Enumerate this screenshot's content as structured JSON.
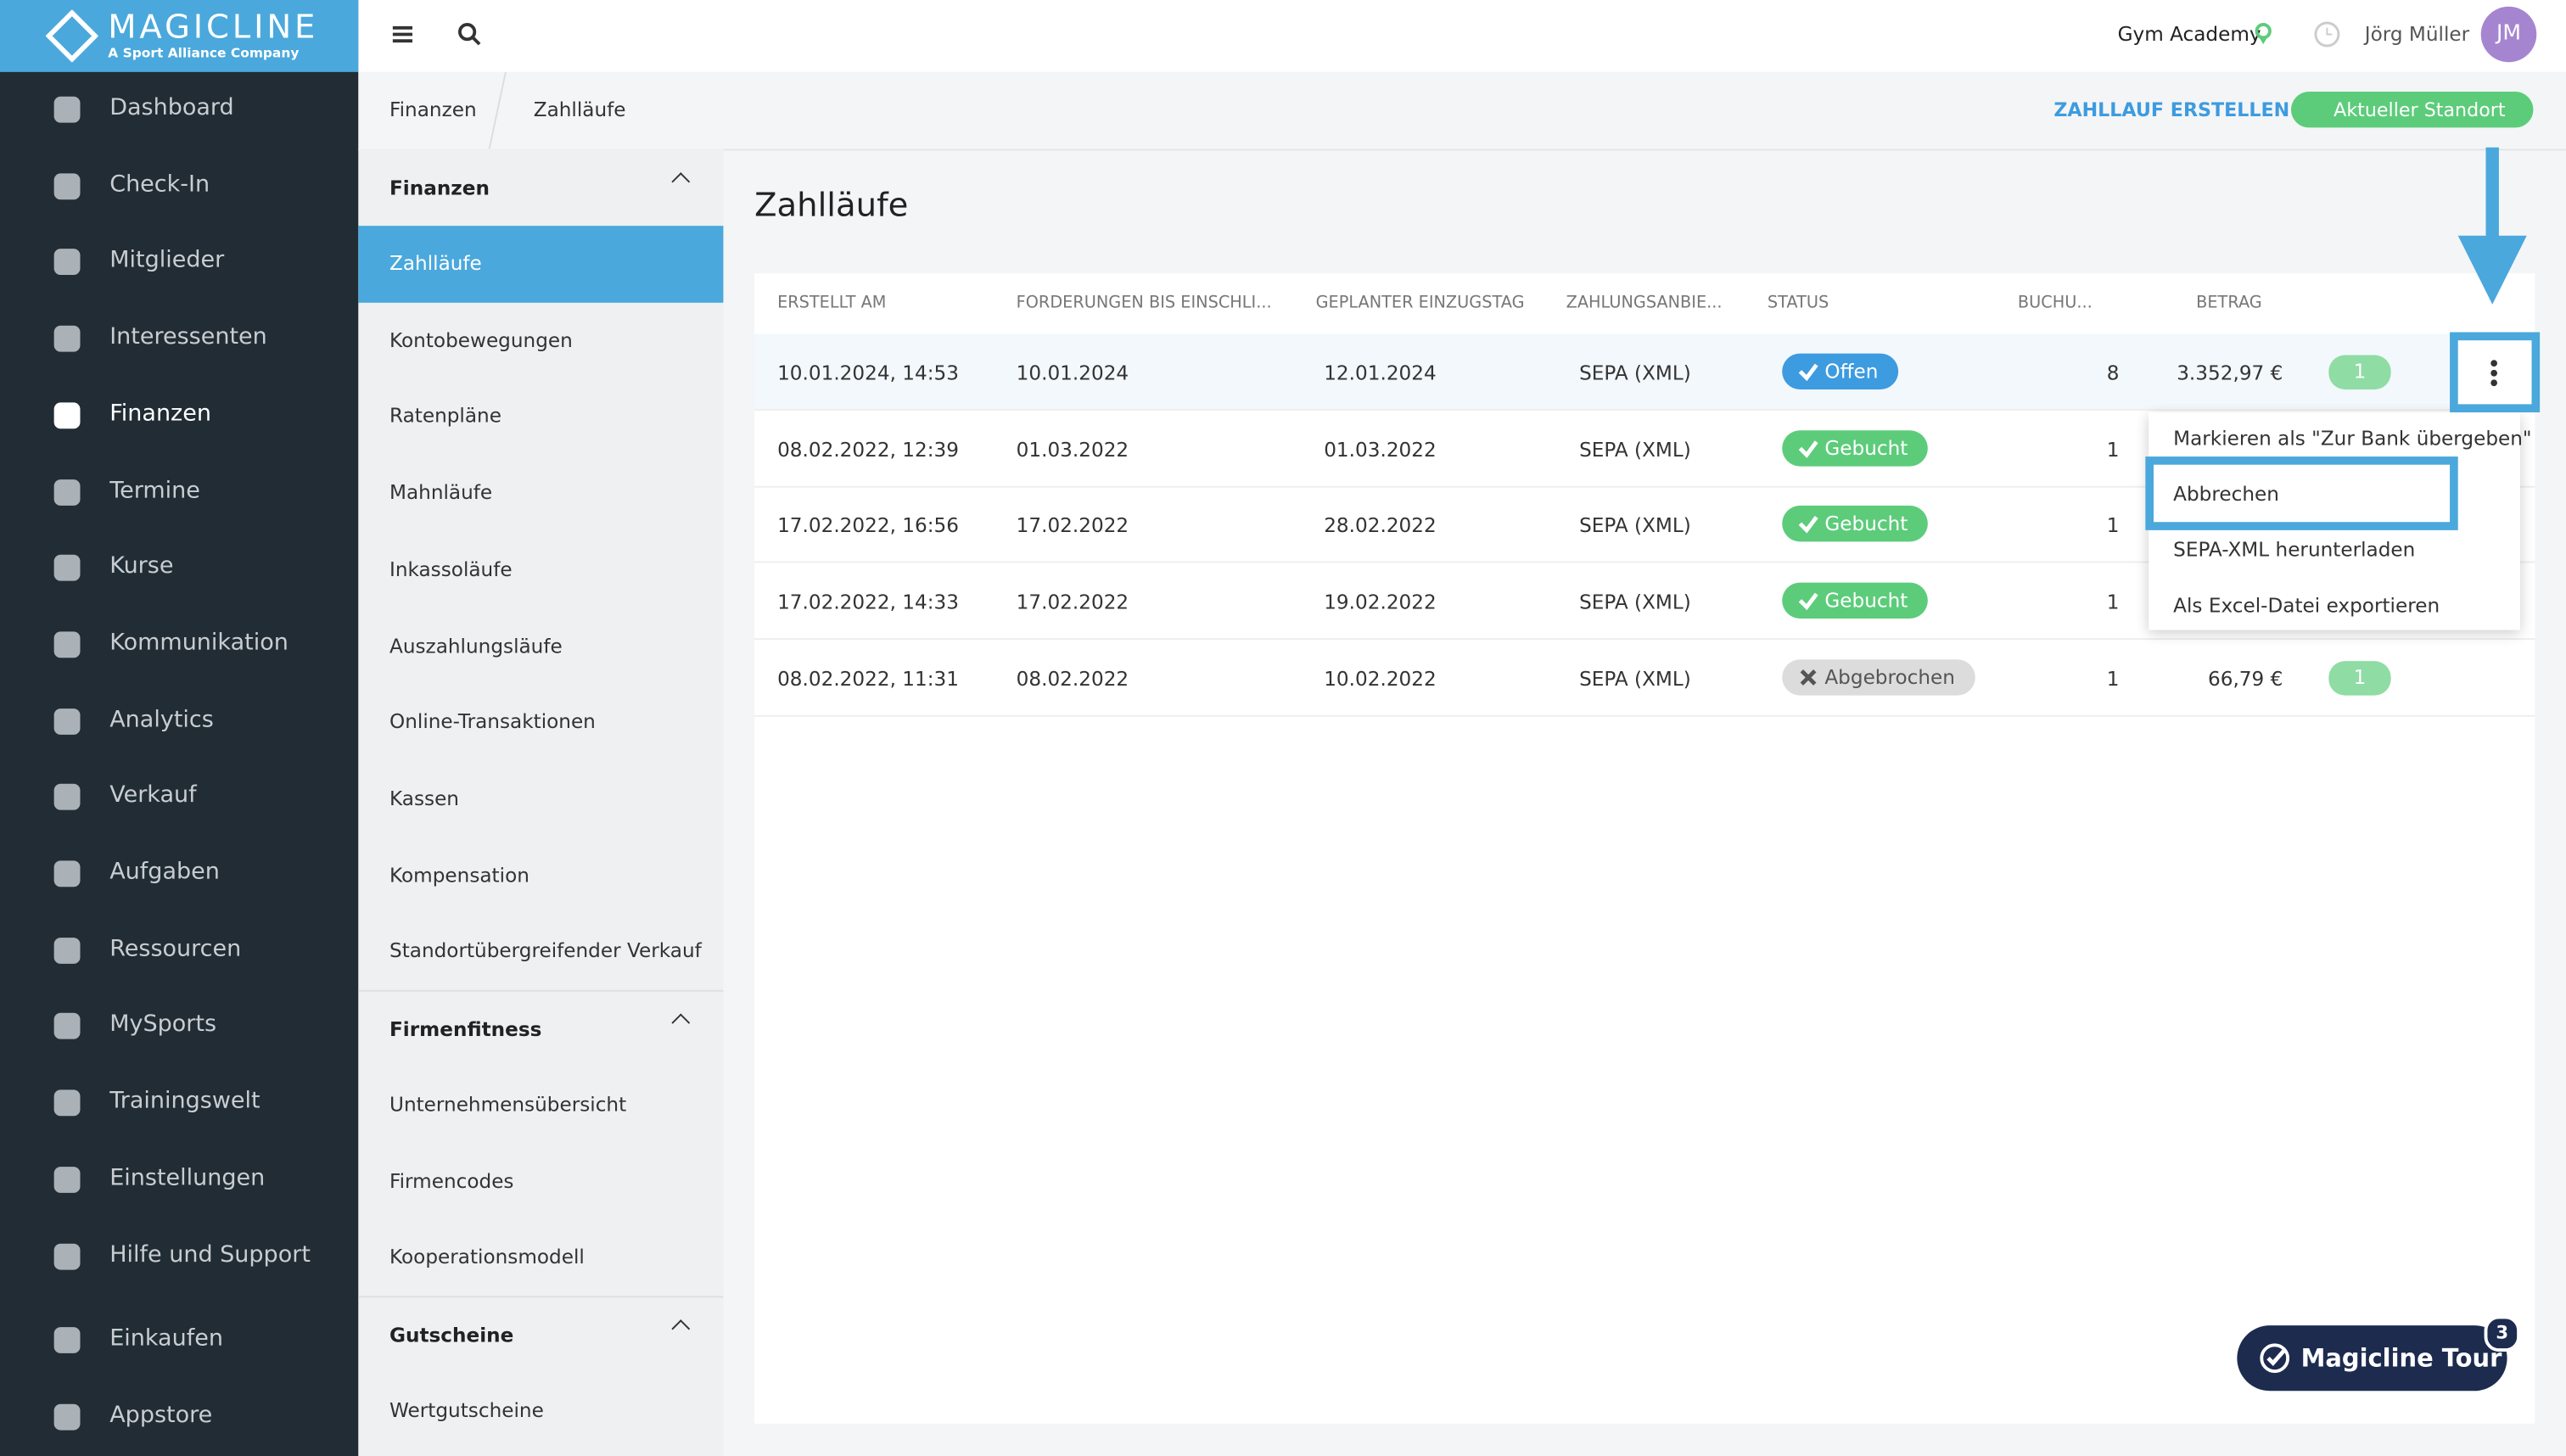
{
  "brand": {
    "name": "MAGICLINE",
    "tagline": "A Sport Alliance Company"
  },
  "nav": [
    "Dashboard",
    "Check-In",
    "Mitglieder",
    "Interessenten",
    "Finanzen",
    "Termine",
    "Kurse",
    "Kommunikation",
    "Analytics",
    "Verkauf",
    "Aufgaben",
    "Ressourcen",
    "MySports",
    "Trainingswelt",
    "Einstellungen",
    "Hilfe und Support",
    "Einkaufen",
    "Appstore"
  ],
  "topbar": {
    "studio": "Gym Academy",
    "user": "Jörg Müller",
    "initials": "JM"
  },
  "breadcrumb": [
    "Finanzen",
    "Zahlläufe"
  ],
  "actions": {
    "create": "ZAHLLAUF ERSTELLEN",
    "location": "Aktueller Standort"
  },
  "subnav": [
    {
      "title": "Finanzen",
      "items": [
        "Zahlläufe",
        "Kontobewegungen",
        "Ratenpläne",
        "Mahnläufe",
        "Inkassoläufe",
        "Auszahlungsläufe",
        "Online-Transaktionen",
        "Kassen",
        "Kompensation",
        "Standortübergreifender Verkauf"
      ]
    },
    {
      "title": "Firmenfitness",
      "items": [
        "Unternehmensübersicht",
        "Firmencodes",
        "Kooperationsmodell"
      ]
    },
    {
      "title": "Gutscheine",
      "items": [
        "Wertgutscheine"
      ]
    }
  ],
  "page_title": "Zahlläufe",
  "table": {
    "headers": [
      "ERSTELLT AM",
      "FORDERUNGEN BIS EINSCHLI...",
      "GEPLANTER EINZUGSTAG",
      "ZAHLUNGSANBIE...",
      "STATUS",
      "BUCHU...",
      "BETRAG"
    ],
    "rows": [
      {
        "cells": [
          "10.01.2024, 14:53",
          "10.01.2024",
          "12.01.2024",
          "SEPA (XML)"
        ],
        "status": "Offen",
        "status_color": "#3d9be0",
        "status_icon": "check",
        "bookings": "8",
        "amount": "3.352,97 €",
        "pins": "1"
      },
      {
        "cells": [
          "08.02.2022, 12:39",
          "01.03.2022",
          "01.03.2022",
          "SEPA (XML)"
        ],
        "status": "Gebucht",
        "status_color": "#5ccc7a",
        "status_icon": "check",
        "bookings": "1"
      },
      {
        "cells": [
          "17.02.2022, 16:56",
          "17.02.2022",
          "28.02.2022",
          "SEPA (XML)"
        ],
        "status": "Gebucht",
        "status_color": "#5ccc7a",
        "status_icon": "check",
        "bookings": "1"
      },
      {
        "cells": [
          "17.02.2022, 14:33",
          "17.02.2022",
          "19.02.2022",
          "SEPA (XML)"
        ],
        "status": "Gebucht",
        "status_color": "#5ccc7a",
        "status_icon": "check",
        "bookings": "1"
      },
      {
        "cells": [
          "08.02.2022, 11:31",
          "08.02.2022",
          "10.02.2022",
          "SEPA (XML)"
        ],
        "status": "Abgebrochen",
        "status_color": "#dcdcdc",
        "status_icon": "cross",
        "bookings": "1",
        "amount": "66,79 €",
        "pins": "1"
      }
    ]
  },
  "menu": [
    "Markieren als \"Zur Bank übergeben\"",
    "Abbrechen",
    "SEPA-XML herunterladen",
    "Als Excel-Datei exportieren"
  ],
  "tour": {
    "label": "Magicline Tour",
    "badge": "3"
  }
}
